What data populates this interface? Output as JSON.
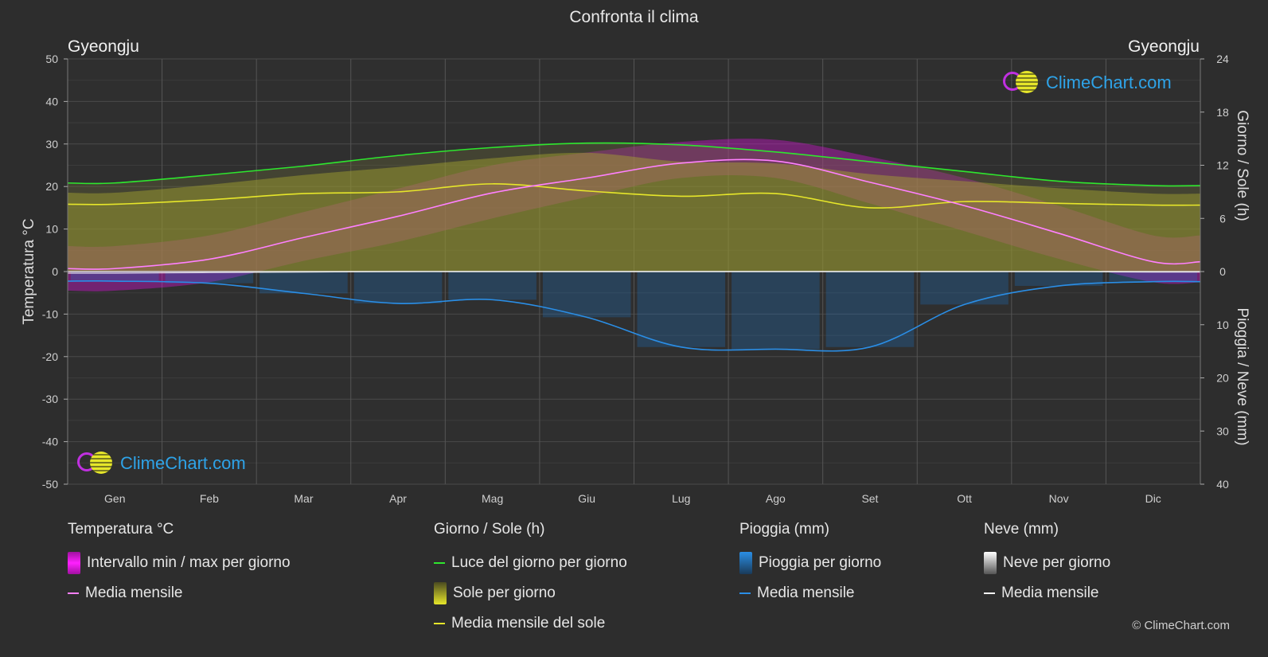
{
  "title": "Confronta il clima",
  "location_left": "Gyeongju",
  "location_right": "Gyeongju",
  "axis_left_title": "Temperatura °C",
  "axis_right_top_title": "Giorno / Sole (h)",
  "axis_right_bottom_title": "Pioggia / Neve (mm)",
  "brand": "ClimeChart.com",
  "copyright": "© ClimeChart.com",
  "colors": {
    "background": "#2d2d2d",
    "temp_range": "#e010e0",
    "temp_mean": "#ff80ff",
    "daylight": "#2ee62e",
    "sunshine": "#c8c828",
    "sunshine_mean": "#e6e62a",
    "rain": "#1e78c8",
    "rain_mean": "#2a8ee6",
    "snow_mean": "#ffffff"
  },
  "legend": {
    "temperature": {
      "head": "Temperatura °C",
      "range": "Intervallo min / max per giorno",
      "mean": "Media mensile"
    },
    "sun": {
      "head": "Giorno / Sole (h)",
      "daylight": "Luce del giorno per giorno",
      "sunshine": "Sole per giorno",
      "sunshine_mean": "Media mensile del sole"
    },
    "rain": {
      "head": "Pioggia (mm)",
      "rain": "Pioggia per giorno",
      "mean": "Media mensile"
    },
    "snow": {
      "head": "Neve (mm)",
      "snow": "Neve per giorno",
      "mean": "Media mensile"
    }
  },
  "chart_data": {
    "type": "line",
    "months": [
      "Gen",
      "Feb",
      "Mar",
      "Apr",
      "Mag",
      "Giu",
      "Lug",
      "Ago",
      "Set",
      "Ott",
      "Nov",
      "Dic"
    ],
    "y_left": {
      "label": "Temperatura °C",
      "ticks": [
        50,
        40,
        30,
        20,
        10,
        0,
        -10,
        -20,
        -30,
        -40,
        -50
      ],
      "range": [
        -50,
        50
      ]
    },
    "y_right_top": {
      "label": "Giorno / Sole (h)",
      "ticks": [
        24,
        18,
        12,
        6,
        0
      ],
      "range": [
        0,
        24
      ]
    },
    "y_right_bottom": {
      "label": "Pioggia / Neve (mm)",
      "ticks": [
        0,
        10,
        20,
        30,
        40
      ],
      "range": [
        0,
        40
      ]
    },
    "grid": true,
    "series": [
      {
        "name": "Luce del giorno per giorno",
        "unit": "h",
        "values": [
          10.0,
          10.9,
          11.9,
          13.1,
          14.0,
          14.5,
          14.3,
          13.5,
          12.4,
          11.3,
          10.2,
          9.7
        ]
      },
      {
        "name": "Sole per giorno",
        "unit": "h",
        "values": [
          8.9,
          9.8,
          10.9,
          11.8,
          12.8,
          13.4,
          12.4,
          12.2,
          11.0,
          10.2,
          9.4,
          8.8
        ]
      },
      {
        "name": "Media mensile del sole",
        "unit": "h",
        "values": [
          7.6,
          8.1,
          8.8,
          9.0,
          9.9,
          9.1,
          8.5,
          8.8,
          7.2,
          7.9,
          7.7,
          7.5
        ]
      },
      {
        "name": "Media mensile",
        "group": "temperatura",
        "unit": "°C",
        "values": [
          0.7,
          2.9,
          8.0,
          13.0,
          18.5,
          22.0,
          25.5,
          26.0,
          21.0,
          15.5,
          9.0,
          2.3
        ]
      },
      {
        "name": "Intervallo min / max per giorno (max)",
        "unit": "°C",
        "values": [
          6.0,
          8.5,
          14.0,
          19.5,
          25.0,
          28.0,
          30.5,
          31.0,
          27.0,
          22.0,
          15.5,
          8.5
        ]
      },
      {
        "name": "Intervallo min / max per giorno (min)",
        "unit": "°C",
        "values": [
          -4.5,
          -2.5,
          2.5,
          7.0,
          12.5,
          17.5,
          22.0,
          22.0,
          16.0,
          9.5,
          3.0,
          -2.5
        ]
      },
      {
        "name": "Media mensile",
        "group": "pioggia",
        "unit": "mm",
        "values": [
          1.8,
          2.2,
          4.1,
          6.0,
          5.3,
          8.6,
          14.2,
          14.6,
          14.2,
          6.2,
          2.7,
          1.9
        ]
      },
      {
        "name": "Media mensile",
        "group": "neve",
        "unit": "mm",
        "values": [
          0.3,
          0.2,
          0.1,
          0.0,
          0.0,
          0.0,
          0.0,
          0.0,
          0.0,
          0.0,
          0.0,
          0.1
        ]
      }
    ]
  }
}
